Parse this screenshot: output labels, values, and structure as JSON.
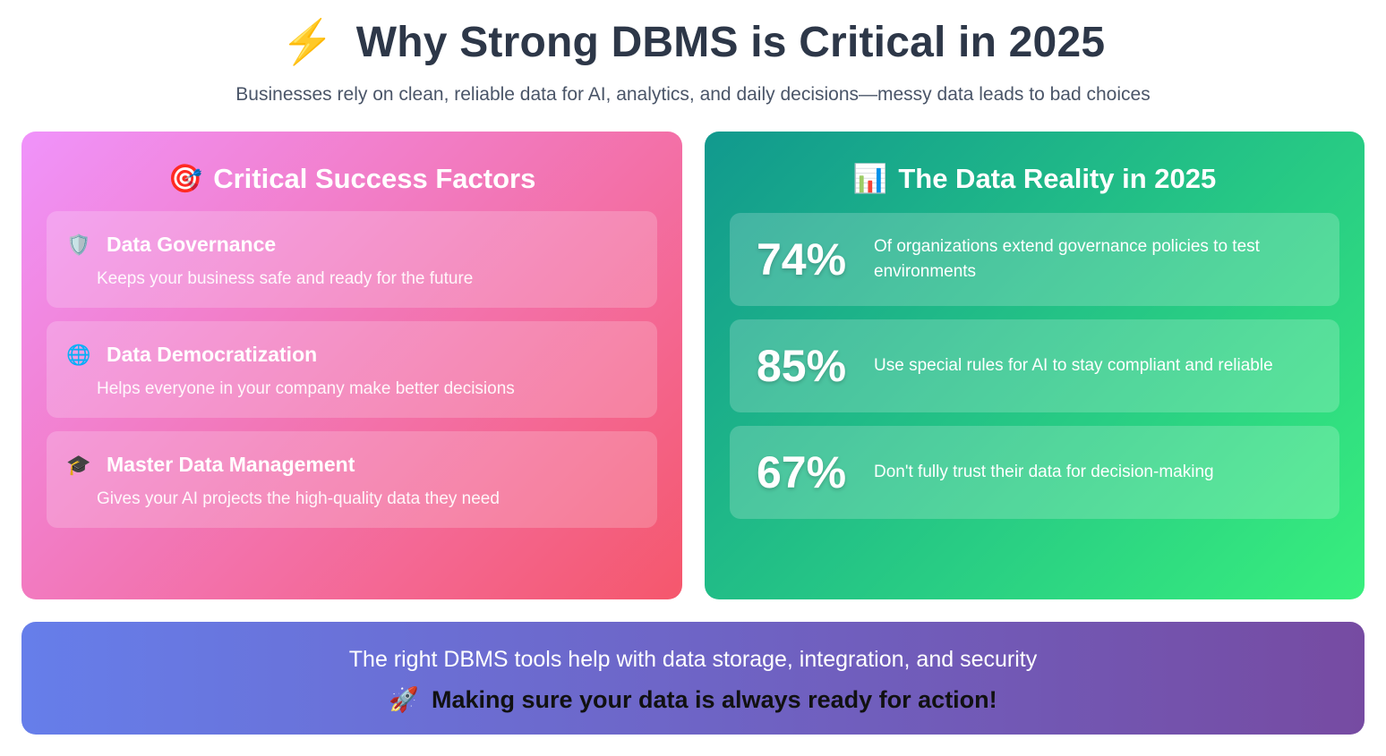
{
  "header": {
    "icon": "lightning-icon",
    "title": "Why Strong DBMS is Critical in 2025",
    "subtitle": "Businesses rely on clean, reliable data for AI, analytics, and daily decisions—messy data leads to bad choices"
  },
  "left_card": {
    "icon": "target-icon",
    "title": "Critical Success Factors",
    "items": [
      {
        "icon": "shield-icon",
        "title": "Data Governance",
        "desc": "Keeps your business safe and ready for the future"
      },
      {
        "icon": "globe-icon",
        "title": "Data Democratization",
        "desc": "Helps everyone in your company make better decisions"
      },
      {
        "icon": "graduation-cap-icon",
        "title": "Master Data Management",
        "desc": "Gives your AI projects the high-quality data they need"
      }
    ]
  },
  "right_card": {
    "icon": "bar-chart-icon",
    "title": "The Data Reality in 2025",
    "stats": [
      {
        "value": "74%",
        "text": "Of organizations extend governance policies to test environments"
      },
      {
        "value": "85%",
        "text": "Use special rules for AI to stay compliant and reliable"
      },
      {
        "value": "67%",
        "text": "Don't fully trust their data for decision-making"
      }
    ]
  },
  "banner": {
    "line1": "The right DBMS tools help with data storage, integration, and security",
    "icon": "rocket-icon",
    "line2": "Making sure your data is always ready for action!"
  },
  "colors": {
    "left_gradient": [
      "#f093fb",
      "#f5576c"
    ],
    "right_gradient": [
      "#11998e",
      "#38ef7d"
    ],
    "banner_gradient": [
      "#667eea",
      "#764ba2"
    ],
    "title": "#2d3748"
  }
}
